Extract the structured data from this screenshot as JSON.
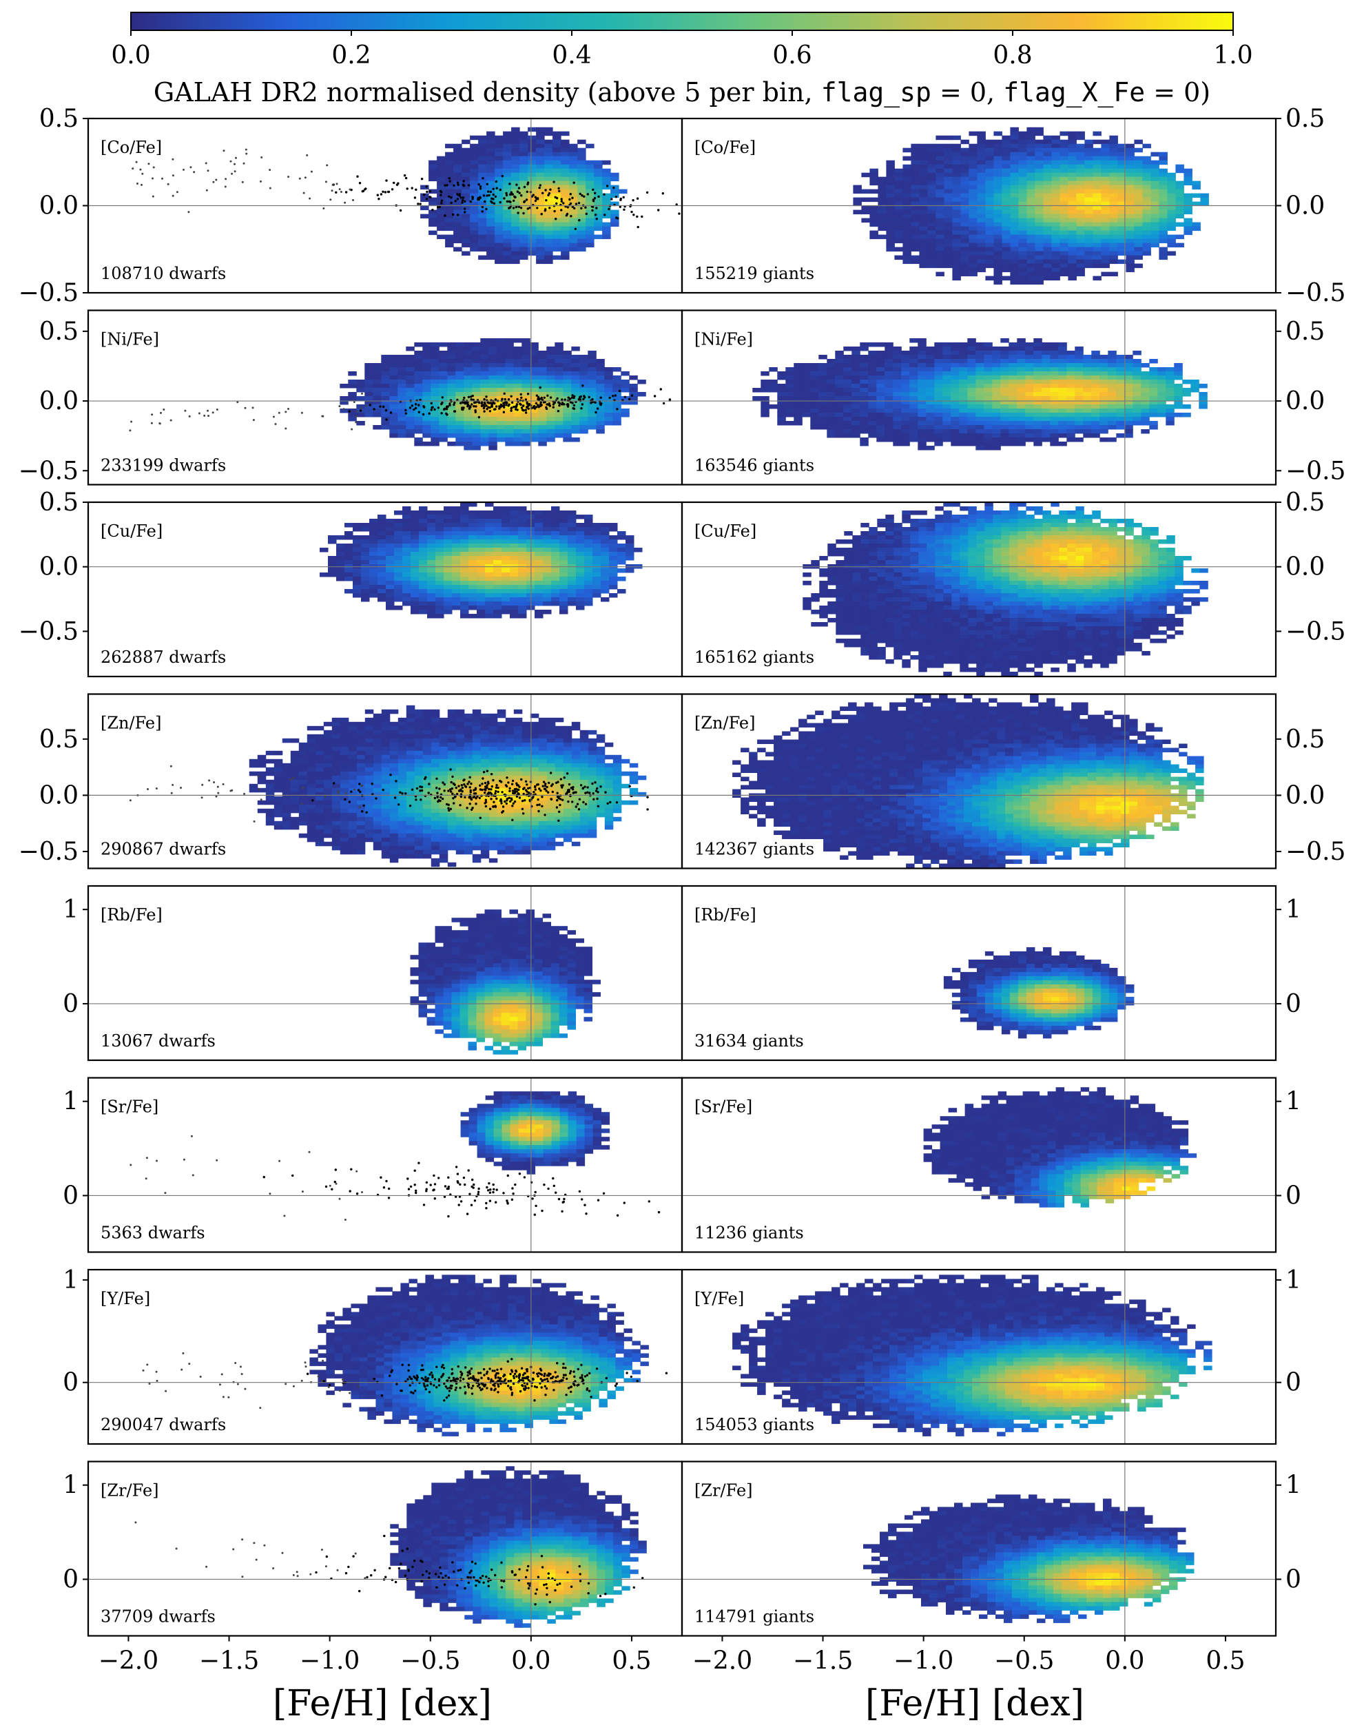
{
  "colorbar": {
    "label_prefix": "GALAH DR2 normalised density (above 5 per bin, ",
    "label_flag1": "flag_sp",
    "label_mid": " = 0, ",
    "label_flag2": "flag_X_Fe",
    "label_suffix": " = 0)",
    "ticks": [
      "0.0",
      "0.2",
      "0.4",
      "0.6",
      "0.8",
      "1.0"
    ],
    "range": [
      0,
      1
    ],
    "colormap": [
      "#2d2c84",
      "#2460d8",
      "#0f9ad6",
      "#22b5b0",
      "#6cc57d",
      "#bfc052",
      "#f9b733",
      "#f9fb0e"
    ]
  },
  "xaxis": {
    "label": "[Fe/H] [dex]",
    "ticks": [
      "−2.0",
      "−1.5",
      "−1.0",
      "−0.5",
      "0.0",
      "0.5"
    ],
    "tick_values": [
      -2.0,
      -1.5,
      -1.0,
      -0.5,
      0.0,
      0.5
    ],
    "range": [
      -2.2,
      0.75
    ]
  },
  "chart_data": {
    "type": "heatmap",
    "columns": [
      "dwarfs",
      "giants"
    ],
    "rows": [
      {
        "element": "[Co/Fe]",
        "dwarfs_label": "108710 dwarfs",
        "giants_label": "155219 giants",
        "ylim": [
          -0.5,
          0.5
        ],
        "yticks": [
          0.5,
          0.0,
          -0.5
        ],
        "ytick_labels": [
          "0.5",
          "0.0",
          "−0.5"
        ],
        "dwarf_cloud": {
          "x_range": [
            -0.55,
            0.45
          ],
          "y_range": [
            -0.35,
            0.45
          ],
          "peak": [
            0.1,
            0.02
          ]
        },
        "giant_cloud": {
          "x_range": [
            -1.35,
            0.4
          ],
          "y_range": [
            -0.45,
            0.45
          ],
          "peak": [
            -0.15,
            0.02
          ]
        },
        "reference_stars": "thick"
      },
      {
        "element": "[Ni/Fe]",
        "dwarfs_label": "233199 dwarfs",
        "giants_label": "163546 giants",
        "ylim": [
          -0.6,
          0.65
        ],
        "yticks": [
          0.5,
          0.0,
          -0.5
        ],
        "ytick_labels": [
          "0.5",
          "0.0",
          "−0.5"
        ],
        "dwarf_cloud": {
          "x_range": [
            -0.95,
            0.55
          ],
          "y_range": [
            -0.35,
            0.45
          ],
          "peak": [
            -0.1,
            -0.04
          ]
        },
        "giant_cloud": {
          "x_range": [
            -1.85,
            0.4
          ],
          "y_range": [
            -0.35,
            0.45
          ],
          "peak": [
            -0.3,
            0.06
          ]
        },
        "reference_stars": "line"
      },
      {
        "element": "[Cu/Fe]",
        "dwarfs_label": "262887 dwarfs",
        "giants_label": "165162 giants",
        "ylim": [
          -0.85,
          0.5
        ],
        "yticks": [
          0.5,
          0.0,
          -0.5
        ],
        "ytick_labels": [
          "0.5",
          "0.0",
          "−0.5"
        ],
        "dwarf_cloud": {
          "x_range": [
            -1.05,
            0.55
          ],
          "y_range": [
            -0.4,
            0.5
          ],
          "peak": [
            -0.15,
            0.0
          ]
        },
        "giant_cloud": {
          "x_range": [
            -1.6,
            0.4
          ],
          "y_range": [
            -0.85,
            0.5
          ],
          "peak": [
            -0.25,
            0.08
          ]
        },
        "reference_stars": "none"
      },
      {
        "element": "[Zn/Fe]",
        "dwarfs_label": "290867 dwarfs",
        "giants_label": "142367 giants",
        "ylim": [
          -0.65,
          0.9
        ],
        "yticks": [
          0.5,
          0.0,
          -0.5
        ],
        "ytick_labels": [
          "0.5",
          "0.0",
          "−0.5"
        ],
        "dwarf_cloud": {
          "x_range": [
            -1.4,
            0.55
          ],
          "y_range": [
            -0.6,
            0.8
          ],
          "peak": [
            -0.1,
            0.0
          ]
        },
        "giant_cloud": {
          "x_range": [
            -1.95,
            0.4
          ],
          "y_range": [
            -0.65,
            0.9
          ],
          "peak": [
            -0.05,
            -0.1
          ]
        },
        "reference_stars": "dense"
      },
      {
        "element": "[Rb/Fe]",
        "dwarfs_label": "13067 dwarfs",
        "giants_label": "31634 giants",
        "ylim": [
          -0.6,
          1.25
        ],
        "yticks": [
          1.0,
          0.0
        ],
        "ytick_labels": [
          "1",
          "0"
        ],
        "dwarf_cloud": {
          "x_range": [
            -0.6,
            0.35
          ],
          "y_range": [
            -0.5,
            1.0
          ],
          "peak": [
            -0.1,
            -0.15
          ]
        },
        "giant_cloud": {
          "x_range": [
            -0.9,
            0.05
          ],
          "y_range": [
            -0.35,
            0.6
          ],
          "peak": [
            -0.35,
            0.05
          ]
        },
        "reference_stars": "none"
      },
      {
        "element": "[Sr/Fe]",
        "dwarfs_label": "5363 dwarfs",
        "giants_label": "11236 giants",
        "ylim": [
          -0.6,
          1.25
        ],
        "yticks": [
          1.0,
          0.0
        ],
        "ytick_labels": [
          "1",
          "0"
        ],
        "dwarf_cloud": {
          "x_range": [
            -0.35,
            0.4
          ],
          "y_range": [
            0.25,
            1.15
          ],
          "peak": [
            0.0,
            0.7
          ]
        },
        "giant_cloud": {
          "x_range": [
            -1.0,
            0.35
          ],
          "y_range": [
            -0.1,
            1.15
          ],
          "peak": [
            0.05,
            0.08
          ]
        },
        "reference_stars": "scatter"
      },
      {
        "element": "[Y/Fe]",
        "dwarfs_label": "290047 dwarfs",
        "giants_label": "154053 giants",
        "ylim": [
          -0.6,
          1.1
        ],
        "yticks": [
          1.0,
          0.0
        ],
        "ytick_labels": [
          "1",
          "0"
        ],
        "dwarf_cloud": {
          "x_range": [
            -1.1,
            0.55
          ],
          "y_range": [
            -0.5,
            1.05
          ],
          "peak": [
            -0.05,
            0.0
          ]
        },
        "giant_cloud": {
          "x_range": [
            -1.95,
            0.4
          ],
          "y_range": [
            -0.5,
            1.05
          ],
          "peak": [
            -0.25,
            -0.02
          ]
        },
        "reference_stars": "dense"
      },
      {
        "element": "[Zr/Fe]",
        "dwarfs_label": "37709 dwarfs",
        "giants_label": "114791 giants",
        "ylim": [
          -0.6,
          1.25
        ],
        "yticks": [
          1.0,
          0.0
        ],
        "ytick_labels": [
          "1",
          "0"
        ],
        "dwarf_cloud": {
          "x_range": [
            -0.7,
            0.55
          ],
          "y_range": [
            -0.5,
            1.2
          ],
          "peak": [
            0.1,
            0.0
          ]
        },
        "giant_cloud": {
          "x_range": [
            -1.3,
            0.35
          ],
          "y_range": [
            -0.45,
            0.9
          ],
          "peak": [
            -0.1,
            0.0
          ]
        },
        "reference_stars": "scatter"
      }
    ],
    "grid": false,
    "reference_lines": {
      "x": 0.0,
      "y": 0.0
    }
  }
}
